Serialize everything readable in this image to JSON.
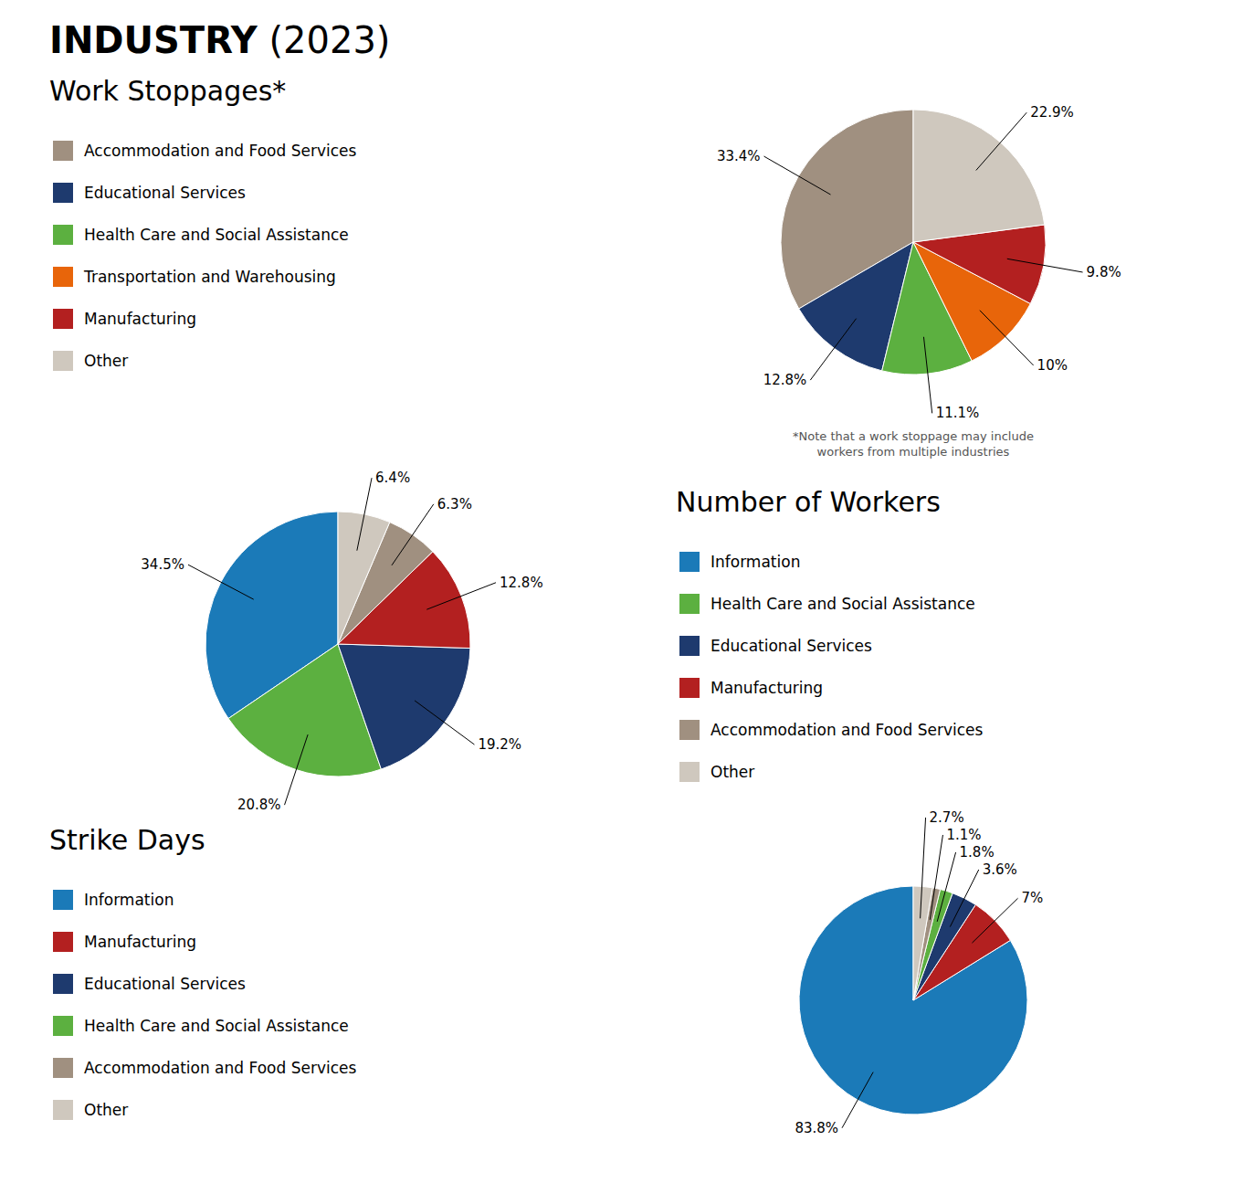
{
  "title": "INDUSTRY (2023)",
  "chart_data": [
    {
      "type": "pie",
      "title": "Work Stoppages*",
      "categories": [
        "Accommodation and Food Services",
        "Educational Services",
        "Health Care and Social Assistance",
        "Transportation and Warehousing",
        "Manufacturing",
        "Other"
      ],
      "values": [
        33.4,
        12.8,
        11.1,
        10.0,
        9.8,
        22.9
      ],
      "value_labels": [
        "33.4%",
        "12.8%",
        "11.1%",
        "10%",
        "9.8%",
        "22.9%"
      ],
      "colors": [
        "#a09080",
        "#1e3a6e",
        "#5cb040",
        "#e8650a",
        "#b32020",
        "#cfc8be"
      ],
      "data_labels": true,
      "annotations": [
        "*Note that a work stoppage may include\nworkers from multiple industries"
      ]
    },
    {
      "type": "pie",
      "title": "Number of Workers",
      "categories": [
        "Information",
        "Health Care and Social Assistance",
        "Educational Services",
        "Manufacturing",
        "Accommodation and Food Services",
        "Other"
      ],
      "values": [
        34.5,
        20.8,
        19.2,
        12.8,
        6.3,
        6.4
      ],
      "value_labels": [
        "34.5%",
        "20.8%",
        "19.2%",
        "12.8%",
        "6.3%",
        "6.4%"
      ],
      "colors": [
        "#1b7ab8",
        "#5cb040",
        "#1e3a6e",
        "#b32020",
        "#a09080",
        "#cfc8be"
      ],
      "data_labels": true
    },
    {
      "type": "pie",
      "title": "Strike Days",
      "categories": [
        "Information",
        "Manufacturing",
        "Educational Services",
        "Health Care and Social Assistance",
        "Accommodation and Food Services",
        "Other"
      ],
      "values": [
        83.8,
        7.0,
        3.6,
        1.8,
        1.1,
        2.7
      ],
      "value_labels": [
        "83.8%",
        "7%",
        "3.6%",
        "1.8%",
        "1.1%",
        "2.7%"
      ],
      "colors": [
        "#1b7ab8",
        "#b32020",
        "#1e3a6e",
        "#5cb040",
        "#a09080",
        "#cfc8be"
      ],
      "data_labels": true
    }
  ]
}
